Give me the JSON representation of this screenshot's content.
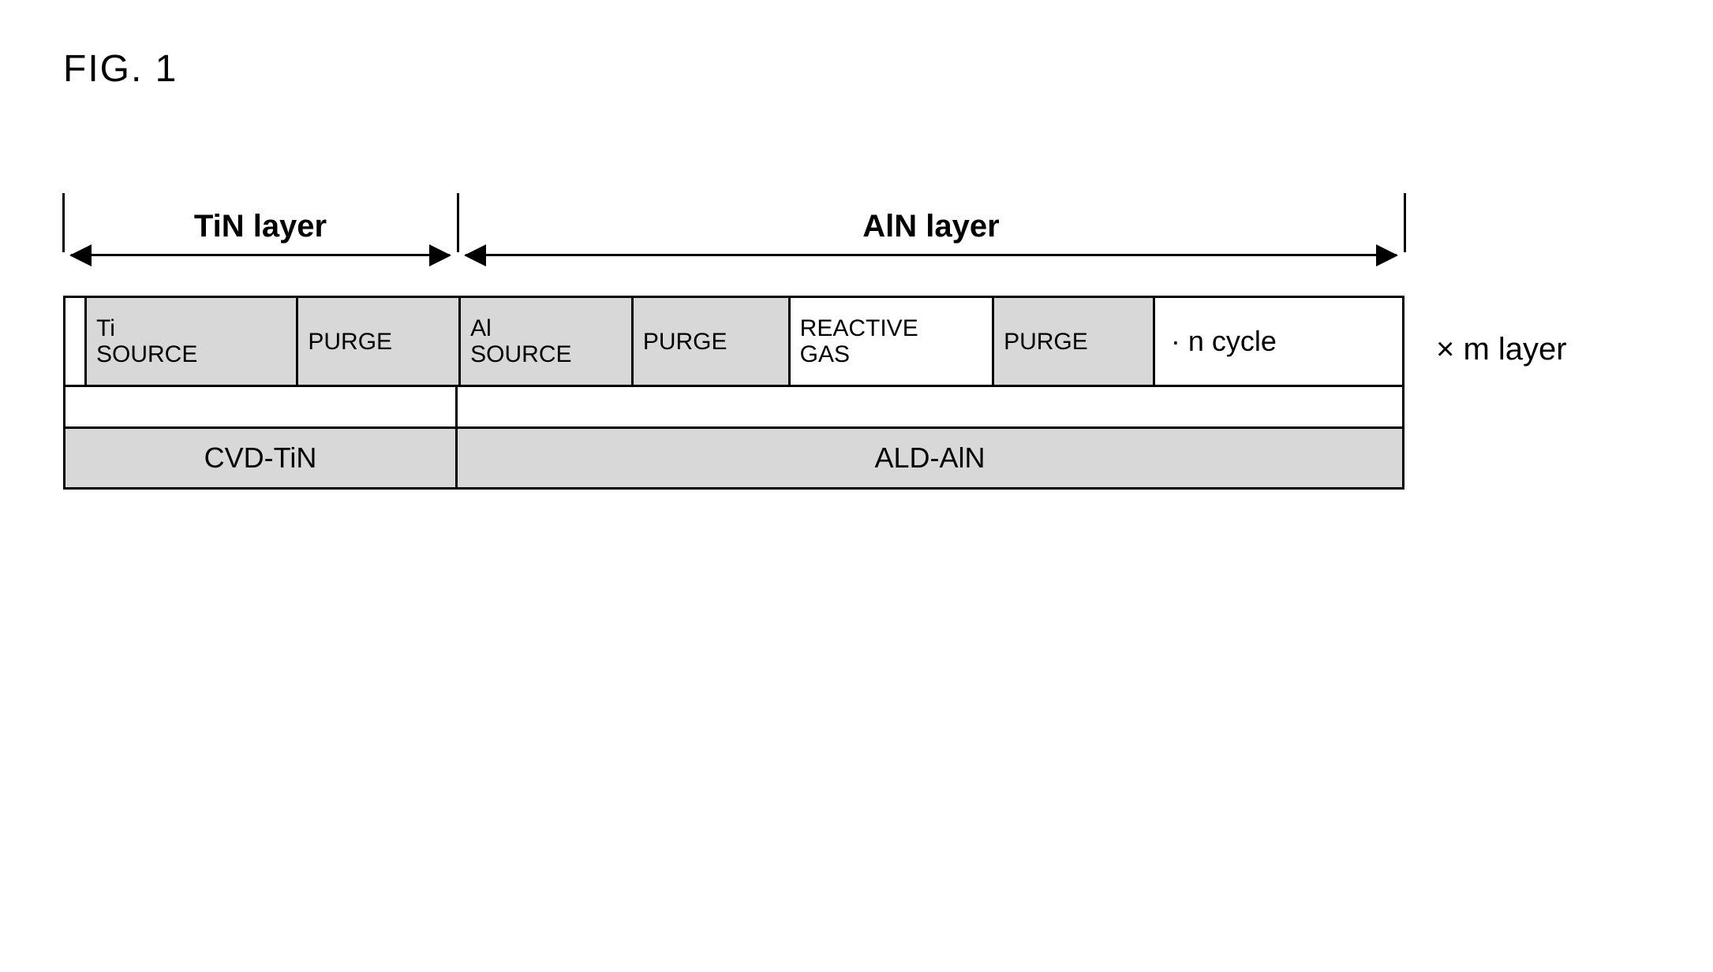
{
  "figure_label": "FIG. 1",
  "layers": {
    "tin": {
      "title": "TiN layer",
      "method": "CVD-TiN",
      "steps": {
        "ti_source": "Ti\nSOURCE",
        "purge": "PURGE"
      }
    },
    "aln": {
      "title": "AlN layer",
      "method": "ALD-AlN",
      "steps": {
        "al_source": "Al\nSOURCE",
        "purge2": "PURGE",
        "reactive_gas": "REACTIVE\nGAS",
        "purge3": "PURGE"
      }
    }
  },
  "cycle_text": "· n cycle",
  "m_layer_text": "× m layer",
  "colors": {
    "shaded_bg": "#d8d8d8",
    "border": "#000000",
    "background": "#ffffff"
  },
  "fonts": {
    "figure_label_size": 48,
    "layer_title_size": 40,
    "step_text_size": 30,
    "method_text_size": 36,
    "annotation_size": 40
  },
  "structure": {
    "type": "flowchart",
    "sections": [
      "TiN layer",
      "AlN layer"
    ],
    "tin_steps": [
      "Ti SOURCE",
      "PURGE"
    ],
    "aln_steps": [
      "Al SOURCE",
      "PURGE",
      "REACTIVE GAS",
      "PURGE"
    ]
  }
}
